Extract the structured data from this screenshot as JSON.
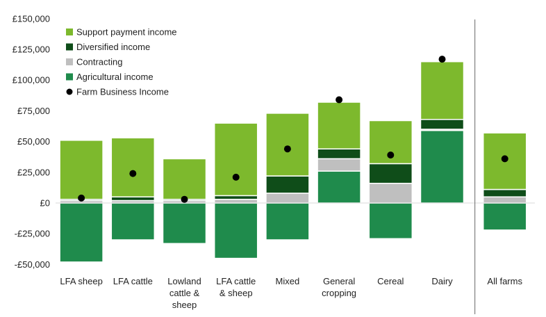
{
  "chart_data": {
    "type": "bar",
    "stacked": true,
    "title": "",
    "xlabel": "",
    "ylabel": "",
    "ylim": [
      -50000,
      150000
    ],
    "yticks": [
      150000,
      125000,
      100000,
      75000,
      50000,
      25000,
      0,
      -25000,
      -50000
    ],
    "ytick_labels": [
      "£150,000",
      "£125,000",
      "£100,000",
      "£75,000",
      "£50,000",
      "£25,000",
      "£0",
      "-£25,000",
      "-£50,000"
    ],
    "categories": [
      [
        "LFA sheep"
      ],
      [
        "LFA cattle"
      ],
      [
        "Lowland",
        "cattle &",
        "sheep"
      ],
      [
        "LFA cattle",
        "& sheep"
      ],
      [
        "Mixed"
      ],
      [
        "General",
        "cropping"
      ],
      [
        "Cereal"
      ],
      [
        "Dairy"
      ],
      [
        "All farms"
      ]
    ],
    "separator_before_index": 8,
    "series": [
      {
        "name": "Agricultural income",
        "color": "#1f8b4c",
        "values": [
          -48000,
          -30000,
          -33000,
          -45000,
          -30000,
          26000,
          -29000,
          59000,
          -22000
        ]
      },
      {
        "name": "Contracting",
        "color": "#bfbfbf",
        "values": [
          2000,
          2000,
          2000,
          3000,
          8000,
          10000,
          16000,
          1000,
          5000
        ]
      },
      {
        "name": "Diversified income",
        "color": "#0f4d19",
        "values": [
          1000,
          3000,
          1000,
          3000,
          14000,
          8000,
          16000,
          8000,
          6000
        ]
      },
      {
        "name": "Support payment income",
        "color": "#7db92d",
        "values": [
          48000,
          48000,
          33000,
          59000,
          51000,
          38000,
          35000,
          47000,
          46000
        ]
      }
    ],
    "points": {
      "name": "Farm Business Income",
      "color": "#000000",
      "values": [
        4000,
        24000,
        3000,
        21000,
        44000,
        84000,
        39000,
        117000,
        36000
      ]
    },
    "legend": {
      "placement": "top-left",
      "order": [
        "Support payment income",
        "Diversified income",
        "Contracting",
        "Agricultural income",
        "Farm Business Income"
      ]
    },
    "grid": false
  }
}
